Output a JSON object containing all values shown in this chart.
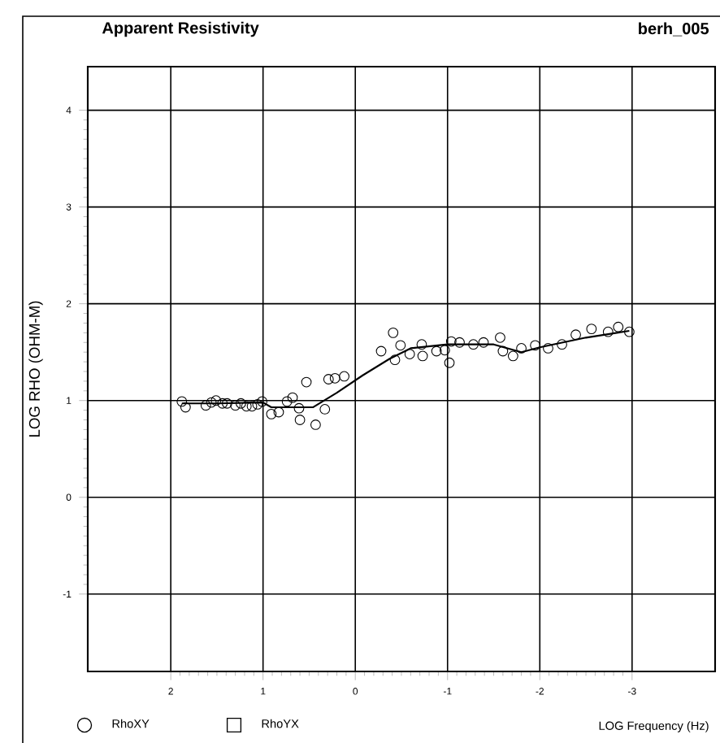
{
  "chart_data": {
    "type": "scatter",
    "title": "Apparent Resistivity",
    "subtitle": "berh_005",
    "xlabel": "LOG Frequency (Hz)",
    "ylabel": "LOG RHO (OHM-M)",
    "xlim": [
      2.9,
      -3.9
    ],
    "ylim": [
      -1.8,
      4.45
    ],
    "xticks": [
      2,
      1,
      0,
      -1,
      -2,
      -3
    ],
    "yticks": [
      -1,
      0,
      1,
      2,
      3,
      4
    ],
    "grid": true,
    "legend": "bottom",
    "series": [
      {
        "name": "RhoXY",
        "marker": "circle",
        "color": "#000000",
        "x": [
          1.88,
          1.84,
          1.62,
          1.56,
          1.51,
          1.44,
          1.39,
          1.3,
          1.24,
          1.18,
          1.12,
          1.06,
          1.01,
          0.91,
          0.83,
          0.74,
          0.68,
          0.61,
          0.6,
          0.43,
          0.53,
          0.33,
          0.29,
          0.22,
          0.12,
          -0.28,
          -0.41,
          -0.43,
          -0.49,
          -0.59,
          -0.72,
          -0.73,
          -0.88,
          -0.97,
          -1.02,
          -1.04,
          -1.13,
          -1.28,
          -1.39,
          -1.57,
          -1.6,
          -1.71,
          -1.8,
          -1.95,
          -2.09,
          -2.24,
          -2.39,
          -2.56,
          -2.74,
          -2.85,
          -2.97
        ],
        "values": [
          0.99,
          0.93,
          0.95,
          0.98,
          1.0,
          0.97,
          0.97,
          0.95,
          0.97,
          0.94,
          0.94,
          0.96,
          0.99,
          0.86,
          0.88,
          0.99,
          1.03,
          0.92,
          0.8,
          0.75,
          1.19,
          0.91,
          1.22,
          1.23,
          1.25,
          1.51,
          1.7,
          1.42,
          1.57,
          1.48,
          1.58,
          1.46,
          1.51,
          1.52,
          1.39,
          1.61,
          1.6,
          1.58,
          1.6,
          1.65,
          1.51,
          1.46,
          1.54,
          1.57,
          1.54,
          1.58,
          1.68,
          1.74,
          1.71,
          1.76,
          1.71
        ]
      },
      {
        "name": "RhoYX",
        "type": "scatter",
        "marker": "square",
        "color": "#000000"
      },
      {
        "type": "line",
        "line_style": "solid",
        "color": "#000000",
        "x": [
          1.88,
          1.5,
          1.0,
          0.91,
          0.7,
          0.46,
          0.2,
          -0.08,
          -0.37,
          -0.6,
          -1.0,
          -1.5,
          -1.8,
          -2.0,
          -2.5,
          -2.97
        ],
        "values": [
          0.97,
          0.97,
          0.98,
          0.93,
          0.93,
          0.93,
          1.08,
          1.26,
          1.43,
          1.54,
          1.58,
          1.58,
          1.5,
          1.55,
          1.65,
          1.72
        ]
      }
    ]
  }
}
